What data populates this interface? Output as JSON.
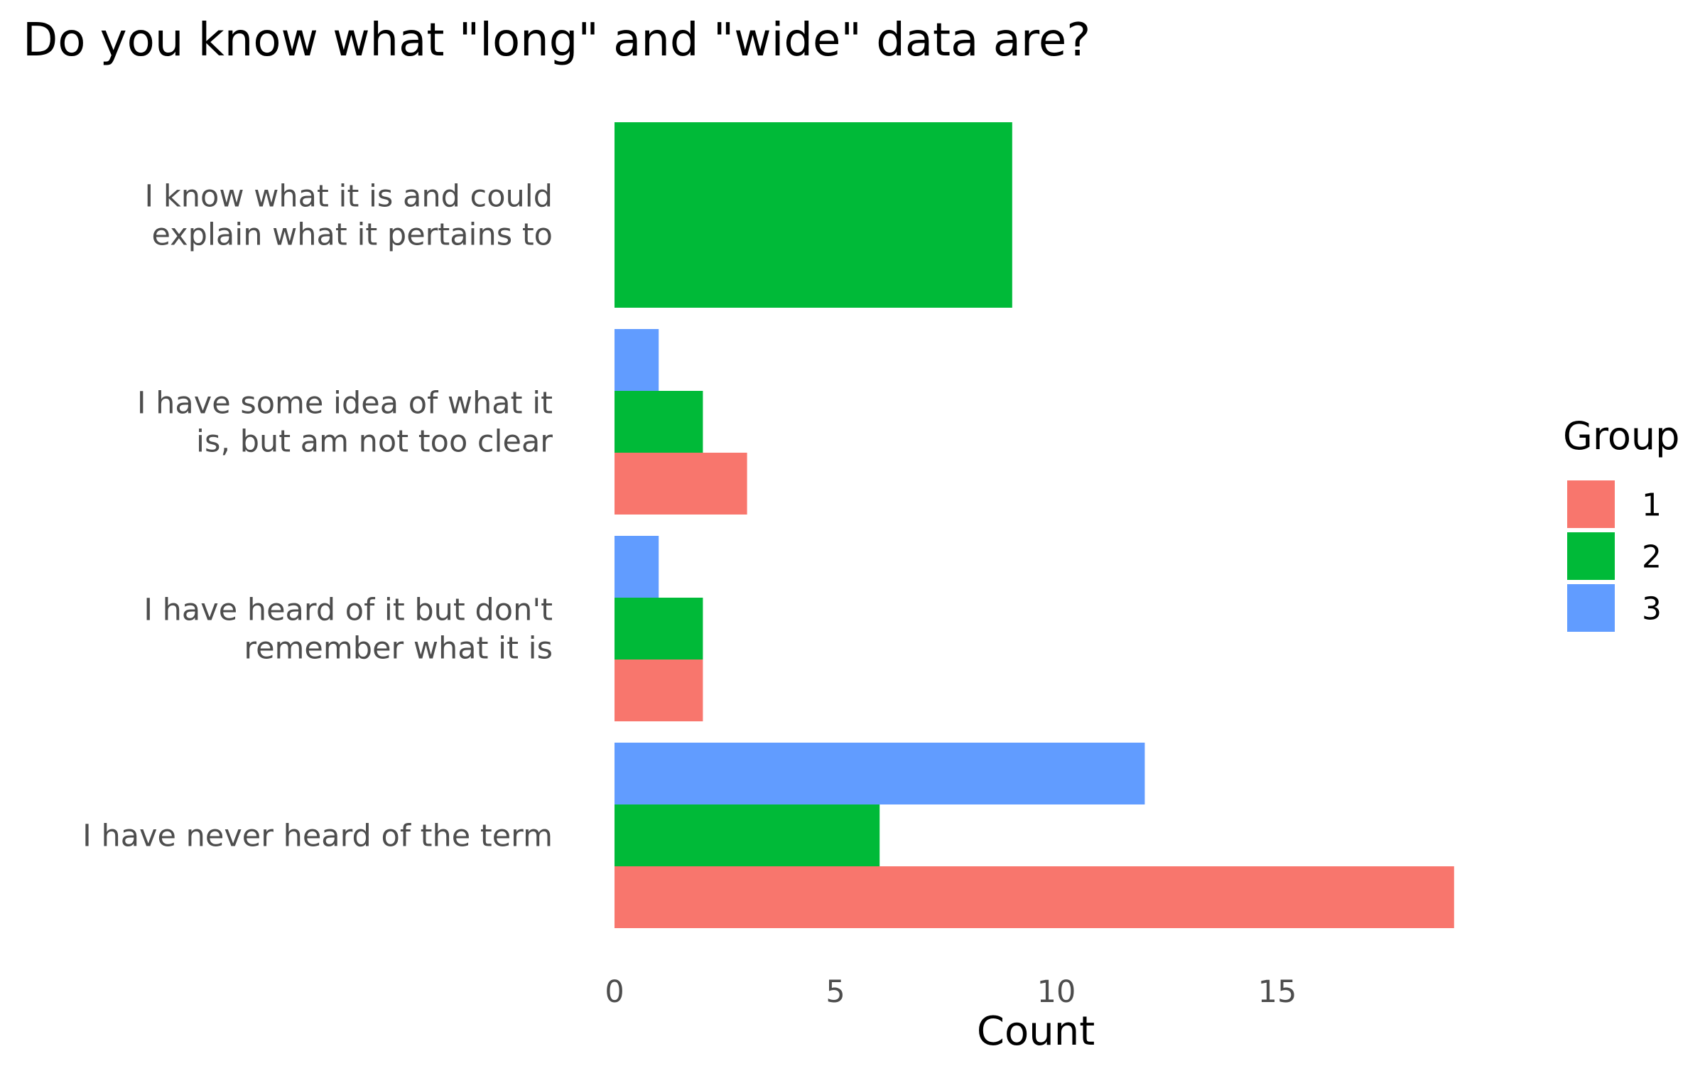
{
  "chart_data": {
    "type": "bar",
    "orientation": "horizontal",
    "title": "Do you know what \"long\" and \"wide\" data are?",
    "xlabel": "Count",
    "ylabel": "",
    "xlim": [
      0,
      20
    ],
    "xticks": [
      "0",
      "5",
      "10",
      "15"
    ],
    "grid": false,
    "legend": {
      "title": "Group",
      "position": "right",
      "entries": [
        {
          "label": "1",
          "color": "#F8766D"
        },
        {
          "label": "2",
          "color": "#00BA38"
        },
        {
          "label": "3",
          "color": "#619CFF"
        }
      ]
    },
    "categories": [
      {
        "lines": [
          "I know what it is and could",
          "explain what it pertains to"
        ]
      },
      {
        "lines": [
          "I have some idea of what it",
          "is, but am not too clear"
        ]
      },
      {
        "lines": [
          "I have heard of it but don't",
          "remember what it is"
        ]
      },
      {
        "lines": [
          "I have never heard of the term"
        ]
      }
    ],
    "series": [
      {
        "name": "1",
        "color": "#F8766D",
        "values": [
          null,
          3,
          2,
          19
        ]
      },
      {
        "name": "2",
        "color": "#00BA38",
        "values": [
          9,
          2,
          2,
          6
        ]
      },
      {
        "name": "3",
        "color": "#619CFF",
        "values": [
          null,
          1,
          1,
          12
        ]
      }
    ]
  }
}
